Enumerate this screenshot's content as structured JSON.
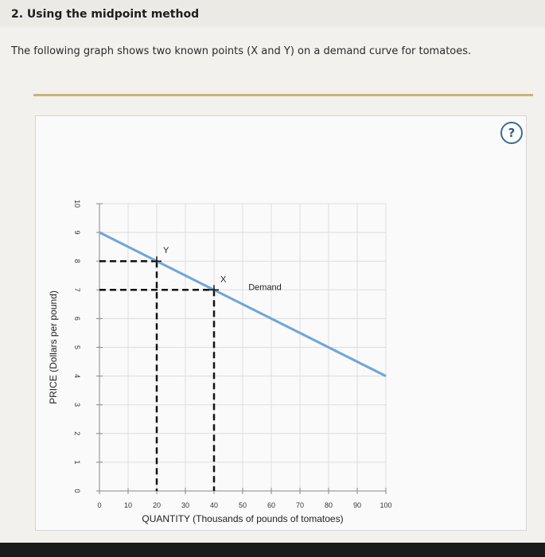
{
  "question": {
    "title": "2. Using the midpoint method",
    "prompt": "The following graph shows two known points (X and Y) on a demand curve for tomatoes."
  },
  "help_label": "?",
  "colors": {
    "demand_line": "#6fa6d4",
    "guide_lines": "#111111",
    "grid": "#dddddd",
    "divider": "#c9b37a"
  },
  "chart_data": {
    "type": "line",
    "xlabel": "QUANTITY (Thousands of pounds of tomatoes)",
    "ylabel": "PRICE (Dollars per pound)",
    "xlim": [
      0,
      100
    ],
    "ylim": [
      0,
      10
    ],
    "xticks": [
      0,
      10,
      20,
      30,
      40,
      50,
      60,
      70,
      80,
      90,
      100
    ],
    "yticks": [
      0,
      1,
      2,
      3,
      4,
      5,
      6,
      7,
      8,
      9,
      10
    ],
    "grid": true,
    "series": [
      {
        "name": "Demand",
        "x": [
          0,
          100
        ],
        "y": [
          9,
          4
        ]
      }
    ],
    "points": [
      {
        "label": "Y",
        "x": 20,
        "y": 8
      },
      {
        "label": "X",
        "x": 40,
        "y": 7
      }
    ]
  }
}
